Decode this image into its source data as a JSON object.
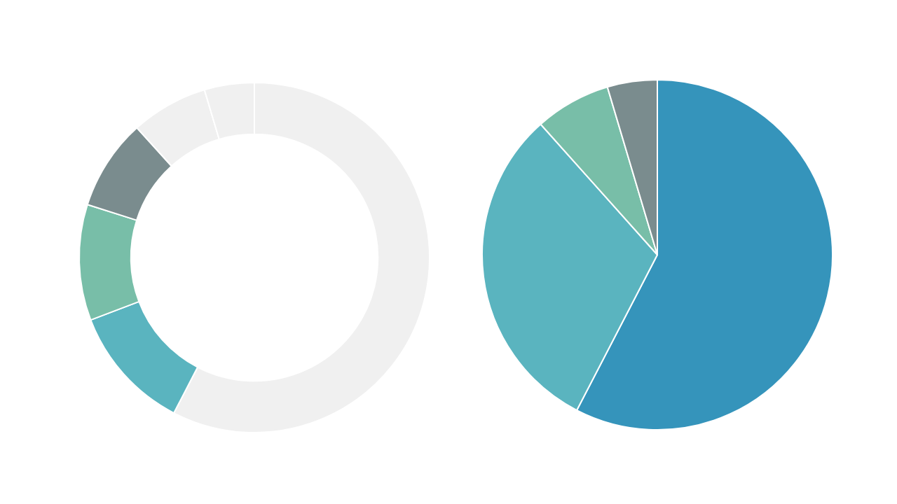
{
  "chart_data": [
    {
      "type": "donut",
      "categories": [
        null,
        null,
        null,
        null,
        null,
        null
      ],
      "values": [
        57.6,
        11.6,
        10.7,
        8.4,
        7.1,
        4.6
      ],
      "colors": [
        "#f0f0f0",
        "#5ab4bf",
        "#78bea8",
        "#7a8c8e",
        "#f0f0f0",
        "#f0f0f0"
      ],
      "legend": false
    },
    {
      "type": "pie",
      "categories": [
        null,
        null,
        null,
        null
      ],
      "values": [
        57.6,
        30.8,
        7.0,
        4.6
      ],
      "colors": [
        "#3594bb",
        "#5ab4bf",
        "#78bea8",
        "#7a8c8e"
      ],
      "legend": false
    }
  ]
}
